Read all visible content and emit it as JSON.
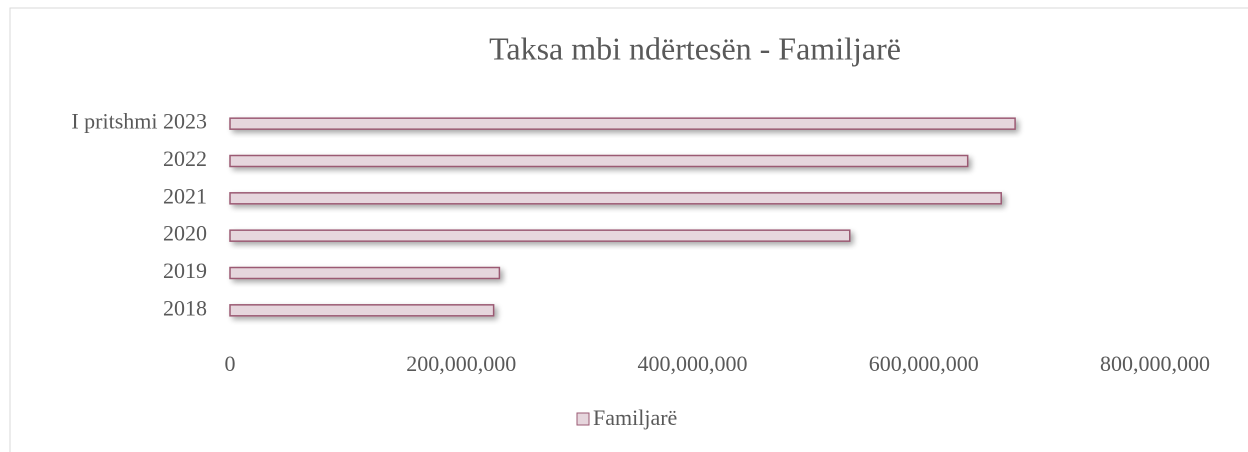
{
  "chart_data": {
    "type": "bar",
    "orientation": "horizontal",
    "title": "Taksa mbi ndërtesën - Familjarë",
    "categories": [
      "2018",
      "2019",
      "2020",
      "2021",
      "2022",
      "I pritshmi 2023"
    ],
    "series": [
      {
        "name": "Familjarë",
        "color": "#e6d6dd",
        "values": [
          228000000,
          233000000,
          536000000,
          667000000,
          638000000,
          679000000
        ]
      }
    ],
    "xlim": [
      0,
      800000000
    ],
    "xticks": [
      0,
      {
        "value": 200000000,
        "label": "200,000,000"
      },
      {
        "value": 400000000,
        "label": "400,000,000"
      },
      {
        "value": 600000000,
        "label": "600,000,000"
      },
      {
        "value": 800000000,
        "label": "800,000,000"
      }
    ],
    "grid": false,
    "legend": "bottom"
  }
}
